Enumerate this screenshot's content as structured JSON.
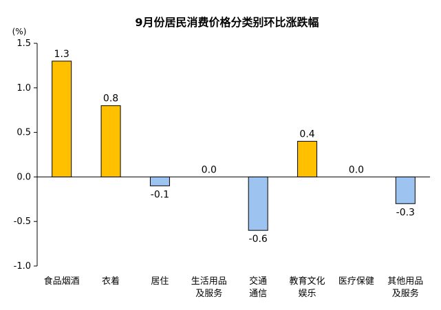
{
  "chart_data": {
    "type": "bar",
    "title": "9月份居民消费价格分类别环比涨跌幅",
    "ylabel": "(%)",
    "xlabel": "",
    "ylim": [
      -1.0,
      1.5
    ],
    "yticks": [
      "1.5",
      "1.0",
      "0.5",
      "0.0",
      "-0.5",
      "-1.0"
    ],
    "grid": false,
    "categories": [
      [
        "食品烟酒"
      ],
      [
        "衣着"
      ],
      [
        "居住"
      ],
      [
        "生活用品",
        "及服务"
      ],
      [
        "交通",
        "通信"
      ],
      [
        "教育文化",
        "娱乐"
      ],
      [
        "医疗保健"
      ],
      [
        "其他用品",
        "及服务"
      ]
    ],
    "values": [
      1.3,
      0.8,
      -0.1,
      0.0,
      -0.6,
      0.4,
      0.0,
      -0.3
    ],
    "value_labels": [
      "1.3",
      "0.8",
      "-0.1",
      "0.0",
      "-0.6",
      "0.4",
      "0.0",
      "-0.3"
    ],
    "colors": {
      "positive": "#FFC000",
      "negative": "#9DC3F0",
      "stroke": "#000000"
    }
  }
}
